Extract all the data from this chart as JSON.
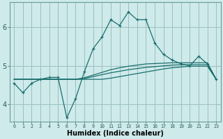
{
  "xlabel": "Humidex (Indice chaleur)",
  "background_color": "#ceeaea",
  "grid_color": "#9bbfbf",
  "line_color": "#1a6e6e",
  "ylim": [
    3.55,
    6.65
  ],
  "xlim": [
    -0.5,
    23.5
  ],
  "yticks": [
    4,
    5,
    6
  ],
  "x_ticks": [
    0,
    1,
    2,
    3,
    4,
    5,
    6,
    7,
    8,
    9,
    10,
    11,
    12,
    13,
    14,
    15,
    16,
    17,
    18,
    19,
    20,
    21,
    22,
    23
  ],
  "series1_y": [
    4.55,
    4.3,
    4.55,
    4.65,
    4.7,
    4.7,
    3.65,
    4.15,
    4.85,
    5.45,
    5.75,
    6.2,
    6.05,
    6.4,
    6.2,
    6.2,
    5.6,
    5.3,
    5.15,
    5.05,
    5.0,
    5.25,
    5.05,
    4.65
  ],
  "series2_y": [
    4.65,
    4.65,
    4.65,
    4.65,
    4.65,
    4.65,
    4.65,
    4.65,
    4.65,
    4.65,
    4.65,
    4.68,
    4.72,
    4.76,
    4.8,
    4.84,
    4.88,
    4.92,
    4.95,
    4.97,
    4.99,
    4.99,
    4.99,
    4.65
  ],
  "series3_y": [
    4.65,
    4.65,
    4.65,
    4.65,
    4.65,
    4.65,
    4.65,
    4.65,
    4.67,
    4.72,
    4.77,
    4.82,
    4.86,
    4.9,
    4.93,
    4.96,
    4.98,
    5.0,
    5.02,
    5.03,
    5.03,
    5.03,
    5.03,
    4.65
  ],
  "series4_y": [
    4.65,
    4.65,
    4.65,
    4.65,
    4.65,
    4.65,
    4.65,
    4.65,
    4.69,
    4.76,
    4.83,
    4.9,
    4.95,
    4.99,
    5.02,
    5.05,
    5.06,
    5.07,
    5.08,
    5.08,
    5.08,
    5.08,
    5.08,
    4.65
  ]
}
